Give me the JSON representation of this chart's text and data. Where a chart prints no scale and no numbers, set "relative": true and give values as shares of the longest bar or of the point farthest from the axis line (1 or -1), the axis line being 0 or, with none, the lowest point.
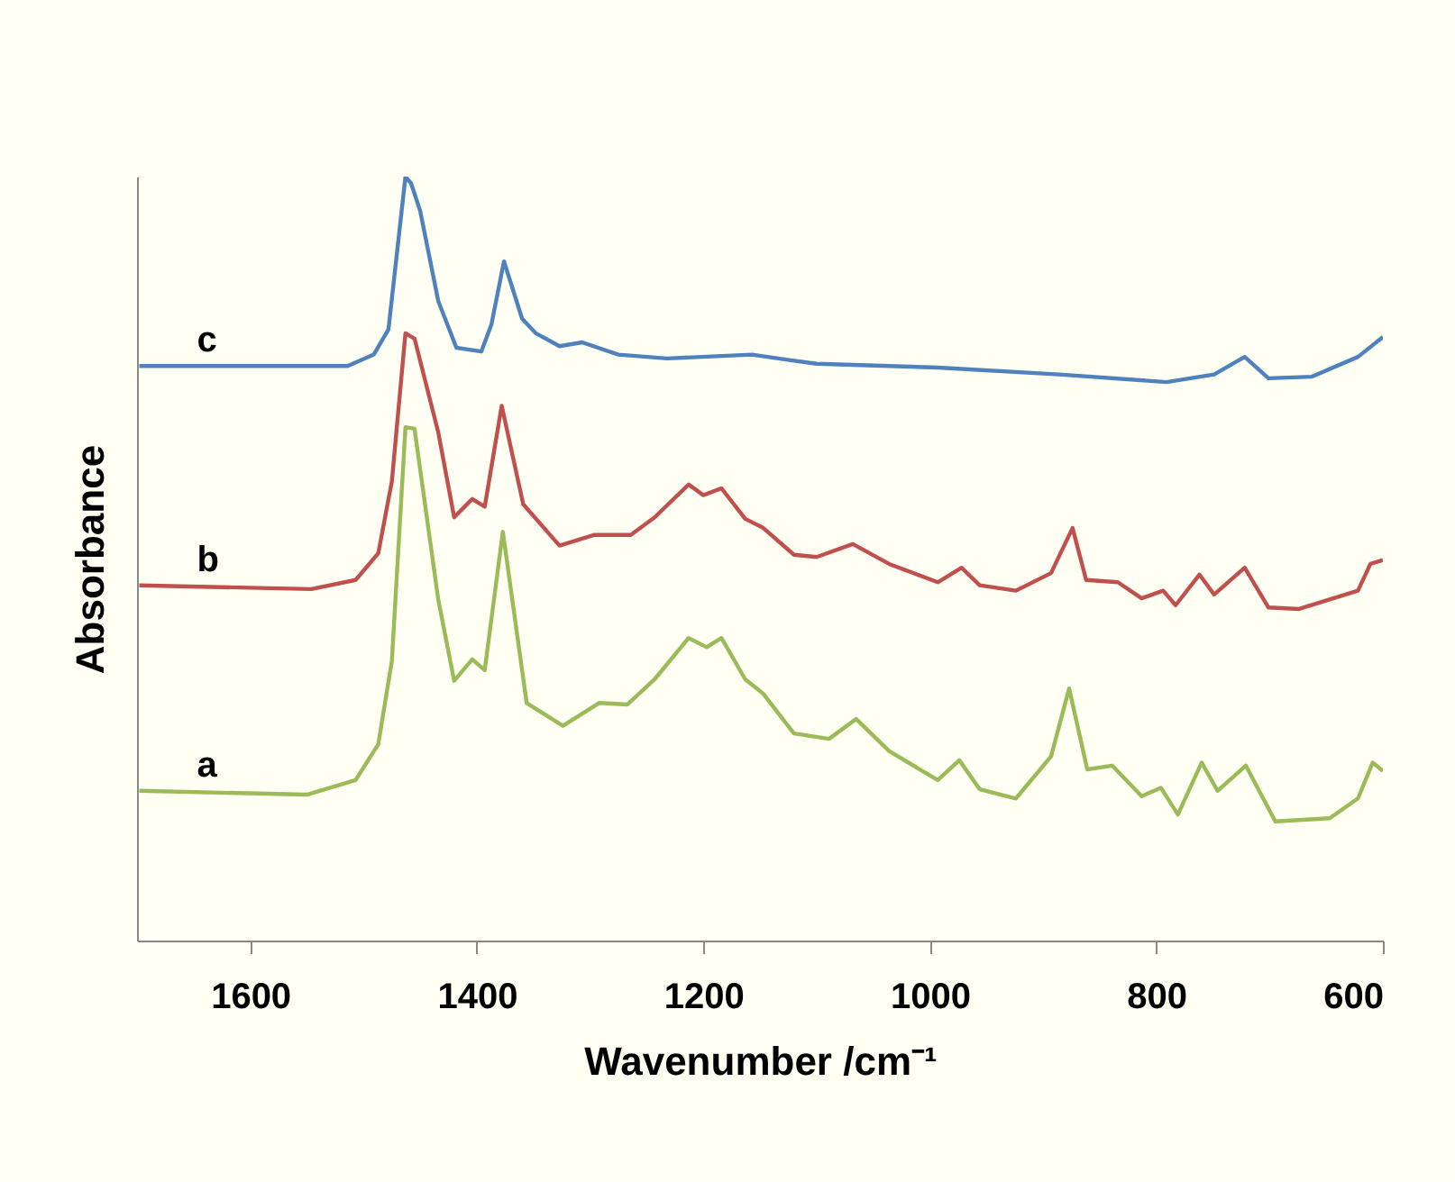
{
  "chart_data": {
    "type": "line",
    "relative": true,
    "xlabel": "Wavenumber /cm⁻¹",
    "ylabel": "Absorbance",
    "xlim": [
      1700,
      600
    ],
    "xticks": [
      1600,
      1400,
      1200,
      1000,
      800,
      600
    ],
    "grid": false,
    "legend": false,
    "marker": "none",
    "line_style": "solid",
    "series": [
      {
        "name": "a",
        "color": "#9bbb59",
        "x": [
          1698,
          1550,
          1507,
          1487,
          1475,
          1463,
          1455,
          1434,
          1420,
          1404,
          1393,
          1377,
          1356,
          1324,
          1292,
          1267,
          1243,
          1213,
          1197,
          1184,
          1163,
          1147,
          1120,
          1089,
          1065,
          1036,
          993,
          974,
          956,
          924,
          893,
          877,
          861,
          839,
          813,
          796,
          781,
          760,
          746,
          721,
          695,
          647,
          622,
          609,
          600
        ],
        "values": [
          0.196,
          0.191,
          0.21,
          0.257,
          0.366,
          0.672,
          0.67,
          0.446,
          0.34,
          0.368,
          0.354,
          0.535,
          0.311,
          0.281,
          0.311,
          0.309,
          0.342,
          0.396,
          0.384,
          0.396,
          0.342,
          0.323,
          0.271,
          0.264,
          0.29,
          0.248,
          0.21,
          0.236,
          0.198,
          0.186,
          0.241,
          0.33,
          0.224,
          0.229,
          0.189,
          0.2,
          0.165,
          0.233,
          0.196,
          0.229,
          0.156,
          0.16,
          0.186,
          0.233,
          0.222
        ]
      },
      {
        "name": "b",
        "color": "#c0504d",
        "x": [
          1698,
          1546,
          1507,
          1487,
          1475,
          1463,
          1455,
          1434,
          1420,
          1404,
          1393,
          1378,
          1359,
          1327,
          1296,
          1264,
          1243,
          1213,
          1200,
          1184,
          1163,
          1147,
          1120,
          1100,
          1068,
          1036,
          993,
          972,
          956,
          924,
          893,
          874,
          862,
          834,
          813,
          794,
          783,
          762,
          749,
          722,
          701,
          674,
          622,
          611,
          600
        ],
        "values": [
          0.465,
          0.46,
          0.472,
          0.507,
          0.601,
          0.795,
          0.788,
          0.665,
          0.554,
          0.578,
          0.568,
          0.7,
          0.571,
          0.517,
          0.531,
          0.531,
          0.554,
          0.597,
          0.583,
          0.592,
          0.552,
          0.54,
          0.505,
          0.502,
          0.519,
          0.493,
          0.469,
          0.488,
          0.465,
          0.458,
          0.481,
          0.54,
          0.472,
          0.469,
          0.448,
          0.458,
          0.439,
          0.479,
          0.453,
          0.488,
          0.436,
          0.434,
          0.458,
          0.493,
          0.498
        ]
      },
      {
        "name": "c",
        "color": "#4f81bd",
        "x": [
          1698,
          1514,
          1491,
          1478,
          1463,
          1458,
          1450,
          1434,
          1418,
          1396,
          1387,
          1376,
          1360,
          1348,
          1327,
          1307,
          1275,
          1232,
          1157,
          1120,
          1100,
          993,
          886,
          791,
          749,
          722,
          701,
          663,
          622,
          600
        ],
        "values": [
          0.752,
          0.752,
          0.767,
          0.8,
          1,
          0.991,
          0.955,
          0.837,
          0.776,
          0.771,
          0.807,
          0.889,
          0.814,
          0.795,
          0.778,
          0.783,
          0.767,
          0.762,
          0.767,
          0.759,
          0.755,
          0.75,
          0.741,
          0.731,
          0.741,
          0.764,
          0.736,
          0.738,
          0.764,
          0.79
        ]
      }
    ]
  }
}
